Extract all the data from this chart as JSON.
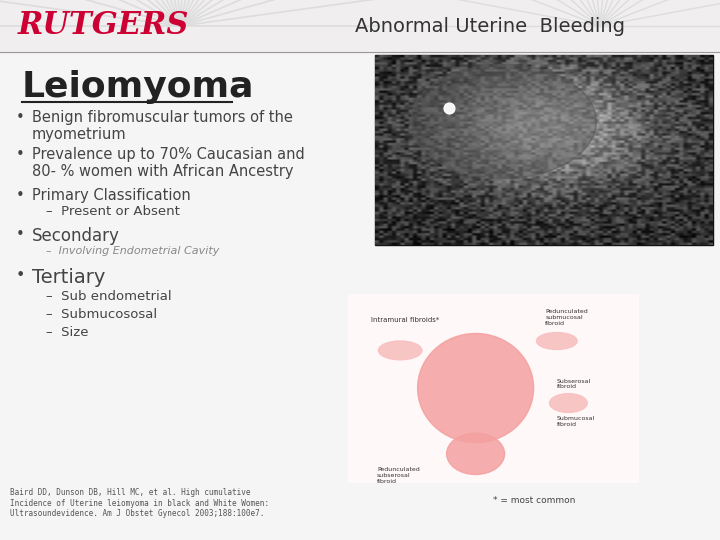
{
  "title": "Abnormal Uterine  Bleeding",
  "slide_title": "Leiomyoma",
  "rutgers_text": "RUTGERS",
  "background_color": "#f5f5f5",
  "header_bg": "#f0eeee",
  "header_line_color": "#999999",
  "title_color": "#333333",
  "slide_title_color": "#222222",
  "rutgers_color": "#cc0033",
  "bullet_color": "#444444",
  "tertiary_subs": [
    "–  Sub endometrial",
    "–  Submucososal",
    "–  Size"
  ],
  "watermark_color": "#dddddd"
}
